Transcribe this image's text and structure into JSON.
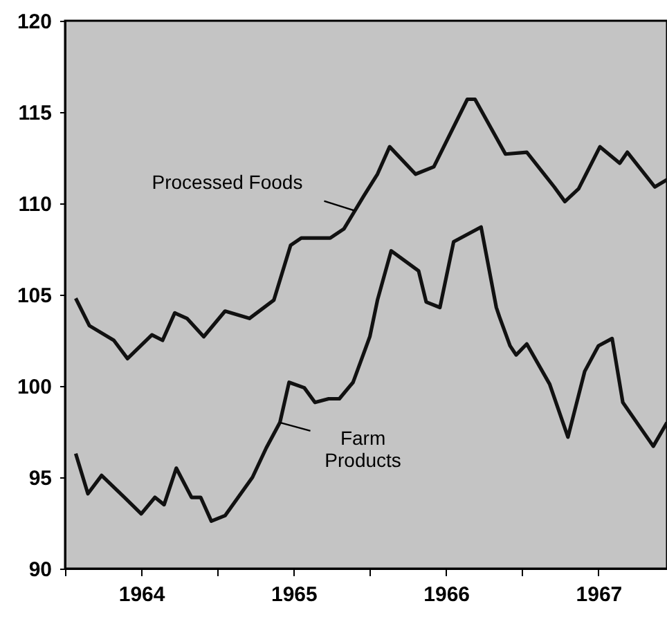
{
  "chart_data": {
    "type": "line",
    "series": [
      {
        "color": "#111111",
        "x": [
          1964.07,
          1964.16,
          1964.32,
          1964.41,
          1964.57,
          1964.64,
          1964.72,
          1964.8,
          1964.91,
          1965.05,
          1965.21,
          1965.37,
          1965.48,
          1965.55,
          1965.74,
          1965.83,
          1965.96,
          1966.05,
          1966.13,
          1966.3,
          1966.42,
          1966.64,
          1966.69,
          1966.89,
          1967.03,
          1967.21,
          1967.28,
          1967.37,
          1967.51,
          1967.64,
          1967.69,
          1967.87,
          1967.95
        ],
        "values": [
          104.8,
          103.3,
          102.5,
          101.5,
          102.8,
          102.5,
          104.0,
          103.7,
          102.7,
          104.1,
          103.7,
          104.7,
          107.7,
          108.1,
          108.1,
          108.6,
          110.4,
          111.6,
          113.1,
          111.6,
          112.0,
          115.7,
          115.7,
          112.7,
          112.8,
          110.9,
          110.1,
          110.8,
          113.1,
          112.2,
          112.8,
          110.9,
          111.3
        ]
      },
      {
        "color": "#111111",
        "x": [
          1964.07,
          1964.15,
          1964.24,
          1964.39,
          1964.5,
          1964.59,
          1964.65,
          1964.73,
          1964.83,
          1964.89,
          1964.96,
          1965.05,
          1965.23,
          1965.32,
          1965.41,
          1965.47,
          1965.57,
          1965.64,
          1965.73,
          1965.8,
          1965.89,
          1966.0,
          1966.05,
          1966.14,
          1966.32,
          1966.37,
          1966.46,
          1966.55,
          1966.73,
          1966.83,
          1966.85,
          1966.92,
          1966.96,
          1967.03,
          1967.18,
          1967.3,
          1967.41,
          1967.5,
          1967.59,
          1967.66,
          1967.86,
          1967.95
        ],
        "values": [
          96.3,
          94.1,
          95.1,
          93.9,
          93.0,
          93.9,
          93.5,
          95.5,
          93.9,
          93.9,
          92.6,
          92.9,
          95.0,
          96.6,
          98.0,
          100.2,
          99.9,
          99.1,
          99.3,
          99.3,
          100.2,
          102.7,
          104.7,
          107.4,
          106.3,
          104.6,
          104.3,
          107.9,
          108.7,
          104.3,
          103.8,
          102.2,
          101.7,
          102.3,
          100.1,
          97.2,
          100.8,
          102.2,
          102.6,
          99.1,
          96.7,
          98.0
        ]
      }
    ],
    "xlim": [
      1964,
      1967.95
    ],
    "xticks": [
      {
        "value": 1964,
        "label": null
      },
      {
        "value": 1964.5,
        "label": "1964"
      },
      {
        "value": 1965,
        "label": null
      },
      {
        "value": 1965.5,
        "label": "1965"
      },
      {
        "value": 1966,
        "label": null
      },
      {
        "value": 1966.5,
        "label": "1966"
      },
      {
        "value": 1967,
        "label": null
      },
      {
        "value": 1967.5,
        "label": "1967"
      }
    ],
    "ylim": [
      90,
      120
    ],
    "yticks": [
      90,
      95,
      100,
      105,
      110,
      115,
      120
    ],
    "grid": false,
    "line_style": "solid",
    "marker": "none",
    "annotations": [
      {
        "text": "Processed Foods",
        "x": 1965.9,
        "y": 109.6
      },
      {
        "text": "Farm\nProducts",
        "x": 1965.41,
        "y": 98.0
      }
    ]
  }
}
